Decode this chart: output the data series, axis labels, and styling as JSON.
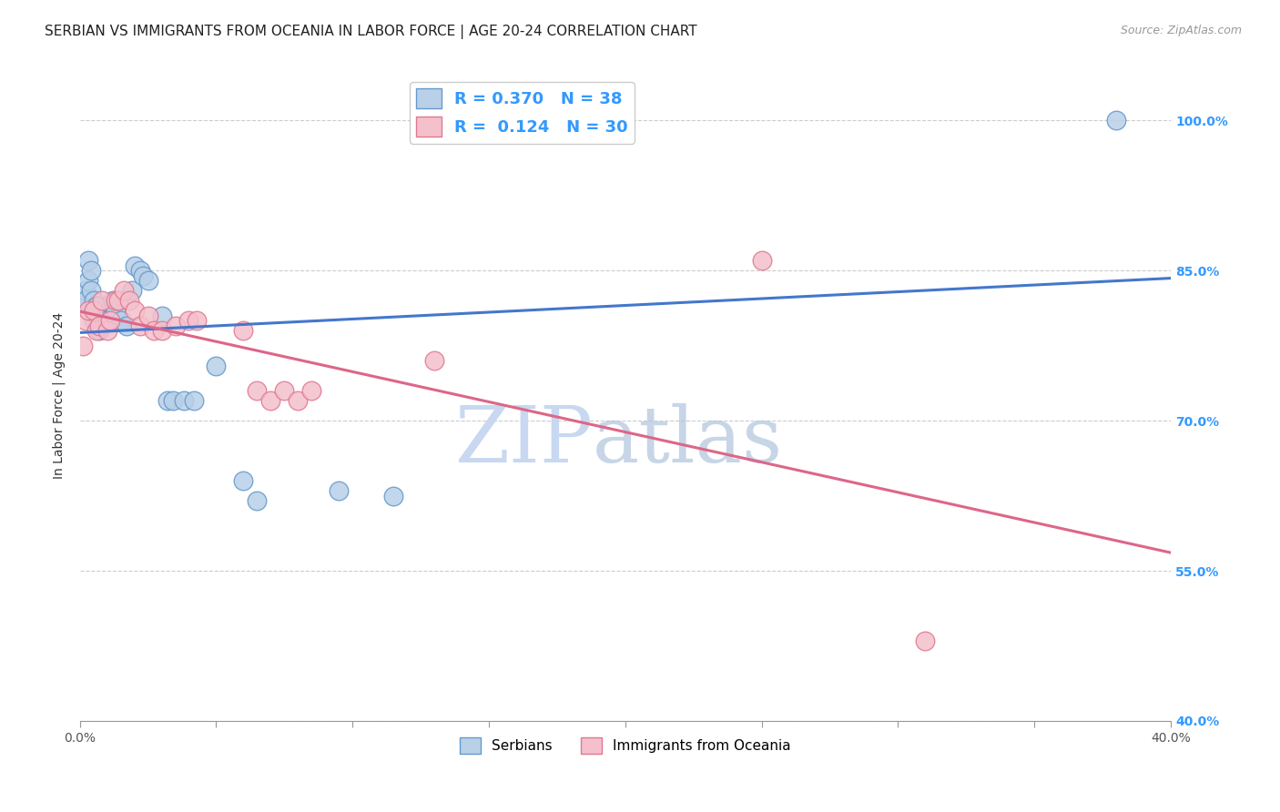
{
  "title": "SERBIAN VS IMMIGRANTS FROM OCEANIA IN LABOR FORCE | AGE 20-24 CORRELATION CHART",
  "source": "Source: ZipAtlas.com",
  "ylabel": "In Labor Force | Age 20-24",
  "xlim": [
    0.0,
    0.4
  ],
  "ylim": [
    0.4,
    1.05
  ],
  "xticks": [
    0.0,
    0.05,
    0.1,
    0.15,
    0.2,
    0.25,
    0.3,
    0.35,
    0.4
  ],
  "yticks": [
    0.4,
    0.55,
    0.7,
    0.85,
    1.0
  ],
  "yticklabels": [
    "40.0%",
    "55.0%",
    "70.0%",
    "85.0%",
    "100.0%"
  ],
  "serbian_R": 0.37,
  "serbian_N": 38,
  "oceania_R": 0.124,
  "oceania_N": 30,
  "serbian_color": "#b8d0e8",
  "serbian_edge_color": "#6699cc",
  "oceania_color": "#f4c0cc",
  "oceania_edge_color": "#e07890",
  "trend_blue": "#4477cc",
  "trend_pink": "#dd6688",
  "serbian_x": [
    0.001,
    0.002,
    0.002,
    0.003,
    0.003,
    0.004,
    0.004,
    0.005,
    0.005,
    0.006,
    0.006,
    0.007,
    0.007,
    0.008,
    0.009,
    0.01,
    0.01,
    0.012,
    0.013,
    0.014,
    0.015,
    0.017,
    0.019,
    0.02,
    0.022,
    0.023,
    0.025,
    0.03,
    0.032,
    0.034,
    0.038,
    0.042,
    0.05,
    0.06,
    0.065,
    0.095,
    0.115,
    0.38
  ],
  "serbian_y": [
    0.82,
    0.83,
    0.82,
    0.84,
    0.86,
    0.85,
    0.83,
    0.82,
    0.8,
    0.815,
    0.815,
    0.8,
    0.79,
    0.8,
    0.8,
    0.8,
    0.8,
    0.82,
    0.81,
    0.82,
    0.8,
    0.795,
    0.83,
    0.855,
    0.85,
    0.845,
    0.84,
    0.805,
    0.72,
    0.72,
    0.72,
    0.72,
    0.755,
    0.64,
    0.62,
    0.63,
    0.625,
    1.0
  ],
  "oceania_x": [
    0.001,
    0.002,
    0.003,
    0.005,
    0.006,
    0.007,
    0.008,
    0.01,
    0.011,
    0.013,
    0.014,
    0.016,
    0.018,
    0.02,
    0.022,
    0.025,
    0.027,
    0.03,
    0.035,
    0.04,
    0.043,
    0.06,
    0.065,
    0.07,
    0.075,
    0.08,
    0.085,
    0.13,
    0.25,
    0.31
  ],
  "oceania_y": [
    0.775,
    0.8,
    0.81,
    0.81,
    0.79,
    0.795,
    0.82,
    0.79,
    0.8,
    0.82,
    0.82,
    0.83,
    0.82,
    0.81,
    0.795,
    0.805,
    0.79,
    0.79,
    0.795,
    0.8,
    0.8,
    0.79,
    0.73,
    0.72,
    0.73,
    0.72,
    0.73,
    0.76,
    0.86,
    0.48
  ],
  "watermark_zip": "ZIP",
  "watermark_atlas": "atlas",
  "watermark_color": "#ccd8ee",
  "title_fontsize": 11,
  "axis_label_fontsize": 10,
  "tick_fontsize": 9,
  "legend_fontsize": 13,
  "source_fontsize": 9,
  "right_ytick_color": "#3399ff",
  "grid_color": "#cccccc"
}
